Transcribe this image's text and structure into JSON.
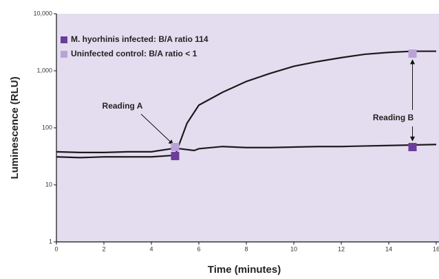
{
  "chart_data": {
    "type": "line",
    "xlabel": "Time (minutes)",
    "ylabel": "Luminescence (RLU)",
    "log_y": true,
    "background": "#e4dcef",
    "line_color": "#1a1a1a",
    "xlim": [
      0,
      16
    ],
    "xticks": [
      0,
      2,
      4,
      6,
      8,
      10,
      12,
      14,
      16
    ],
    "ylim": [
      1,
      10000
    ],
    "yticks": [
      {
        "value": 10000,
        "label": "10,000"
      },
      {
        "value": 1000,
        "label": "1,000"
      },
      100,
      10,
      1
    ],
    "legend_position": "upper left",
    "series": [
      {
        "name": "M. hyorhinis infected: B/A ratio 114",
        "color": "#6a3d9a",
        "x": [
          0,
          1,
          2,
          3,
          4,
          5,
          5.5,
          6,
          7,
          8,
          9,
          10,
          11,
          12,
          13,
          14,
          15,
          16
        ],
        "values": [
          31,
          30,
          31,
          31,
          31,
          33,
          120,
          250,
          420,
          650,
          900,
          1200,
          1450,
          1700,
          1950,
          2100,
          2200,
          2200
        ]
      },
      {
        "name": "Uninfected control: B/A ratio < 1",
        "color": "#b9a3d6",
        "x": [
          0,
          1,
          2,
          3,
          4,
          5,
          5.8,
          6,
          7,
          8,
          9,
          10,
          11,
          12,
          13,
          14,
          15,
          16
        ],
        "values": [
          38,
          37,
          37,
          38,
          38,
          44,
          40,
          43,
          47,
          45,
          45,
          46,
          47,
          47,
          48,
          49,
          50,
          51
        ]
      }
    ],
    "points": [
      {
        "x": 5,
        "y": 46,
        "color": "#b9a3d6"
      },
      {
        "x": 5,
        "y": 32,
        "color": "#6a3d9a"
      },
      {
        "x": 15,
        "y": 2000,
        "color": "#b9a3d6"
      },
      {
        "x": 15,
        "y": 46,
        "color": "#6a3d9a"
      }
    ],
    "annotations": [
      {
        "text": "Reading A",
        "x": 5
      },
      {
        "text": "Reading B",
        "x": 15
      }
    ]
  }
}
